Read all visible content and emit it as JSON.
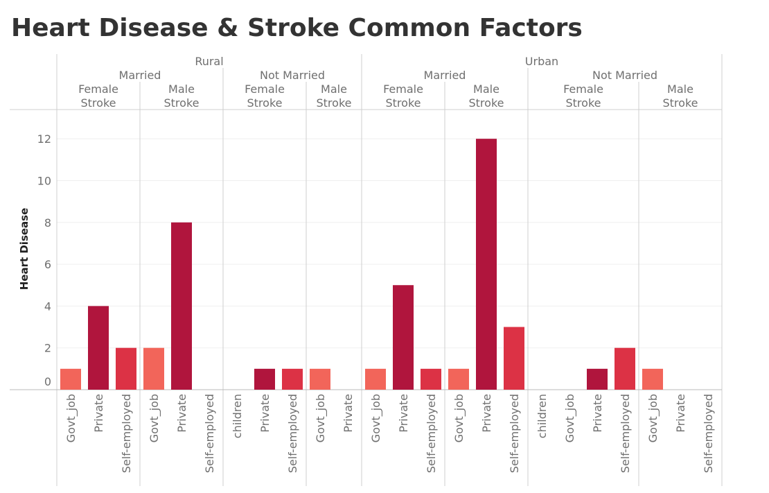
{
  "title": "Heart Disease & Stroke Common Factors",
  "chart_data": {
    "type": "bar",
    "title": "Heart Disease & Stroke Common Factors",
    "ylabel": "Heart Disease",
    "ylim": [
      0,
      13
    ],
    "yticks": [
      0,
      2,
      4,
      6,
      8,
      10,
      12
    ],
    "grid": true,
    "colors": {
      "Govt_job": "#f2655a",
      "Private": "#b0153d",
      "Self-employed": "#dc3245",
      "children": "#dc3245"
    },
    "panels": [
      {
        "residence": "Rural",
        "married": "Married",
        "gender": "Female",
        "stroke": "Stroke",
        "categories": [
          "Govt_job",
          "Private",
          "Self-employed"
        ],
        "values": [
          1,
          4,
          2
        ]
      },
      {
        "residence": "Rural",
        "married": "Married",
        "gender": "Male",
        "stroke": "Stroke",
        "categories": [
          "Govt_job",
          "Private",
          "Self-employed"
        ],
        "values": [
          2,
          8,
          null
        ]
      },
      {
        "residence": "Rural",
        "married": "Not Married",
        "gender": "Female",
        "stroke": "Stroke",
        "categories": [
          "children",
          "Private",
          "Self-employed"
        ],
        "values": [
          null,
          1,
          1
        ]
      },
      {
        "residence": "Rural",
        "married": "Not Married",
        "gender": "Male",
        "stroke": "Stroke",
        "categories": [
          "Govt_job",
          "Private"
        ],
        "values": [
          1,
          null
        ]
      },
      {
        "residence": "Urban",
        "married": "Married",
        "gender": "Female",
        "stroke": "Stroke",
        "categories": [
          "Govt_job",
          "Private",
          "Self-employed"
        ],
        "values": [
          1,
          5,
          1
        ]
      },
      {
        "residence": "Urban",
        "married": "Married",
        "gender": "Male",
        "stroke": "Stroke",
        "categories": [
          "Govt_job",
          "Private",
          "Self-employed"
        ],
        "values": [
          1,
          12,
          3
        ]
      },
      {
        "residence": "Urban",
        "married": "Not Married",
        "gender": "Female",
        "stroke": "Stroke",
        "categories": [
          "children",
          "Govt_job",
          "Private",
          "Self-employed"
        ],
        "values": [
          null,
          null,
          1,
          2
        ]
      },
      {
        "residence": "Urban",
        "married": "Not Married",
        "gender": "Male",
        "stroke": "Stroke",
        "categories": [
          "Govt_job",
          "Private",
          "Self-employed"
        ],
        "values": [
          1,
          null,
          null
        ]
      }
    ]
  }
}
